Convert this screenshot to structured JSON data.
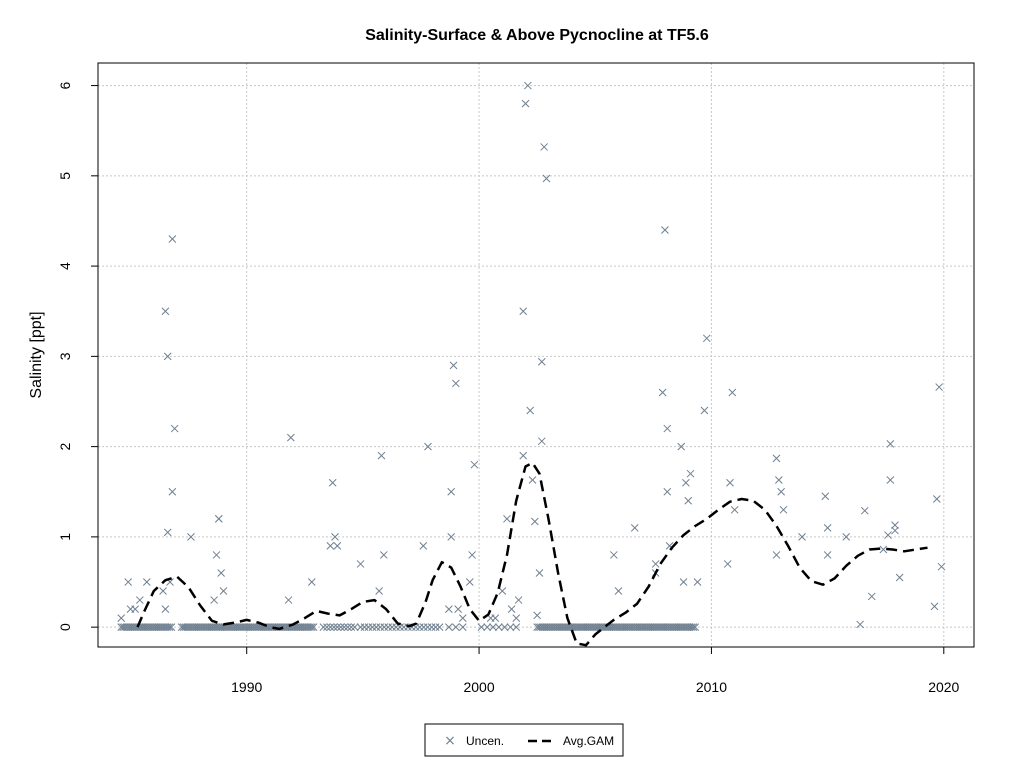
{
  "chart_data": {
    "type": "scatter",
    "title": "Salinity-Surface & Above Pycnocline at TF5.6",
    "xlabel": "",
    "ylabel": "Salinity [ppt]",
    "xlim": [
      1983.6,
      2021.3
    ],
    "ylim": [
      -0.22,
      6.25
    ],
    "x_ticks": [
      1990,
      2000,
      2010,
      2020
    ],
    "y_ticks": [
      0,
      1,
      2,
      3,
      4,
      5,
      6
    ],
    "grid": true,
    "legend_position": "bottom-center",
    "series": [
      {
        "name": "Uncen.",
        "marker": "x",
        "color": "#708090",
        "points": [
          [
            1984.6,
            0.1
          ],
          [
            1984.9,
            0.5
          ],
          [
            1985.0,
            0.2
          ],
          [
            1985.2,
            0.2
          ],
          [
            1985.4,
            0.3
          ],
          [
            1985.7,
            0.5
          ],
          [
            1986.4,
            0.4
          ],
          [
            1986.5,
            0.2
          ],
          [
            1986.5,
            3.5
          ],
          [
            1986.6,
            3.0
          ],
          [
            1986.6,
            1.05
          ],
          [
            1986.7,
            0.5
          ],
          [
            1986.8,
            1.5
          ],
          [
            1986.8,
            4.3
          ],
          [
            1986.9,
            2.2
          ],
          [
            1987.6,
            1.0
          ],
          [
            1988.8,
            1.2
          ],
          [
            1988.8,
            1.2
          ],
          [
            1988.7,
            0.8
          ],
          [
            1988.9,
            0.6
          ],
          [
            1989.0,
            0.4
          ],
          [
            1988.6,
            0.3
          ],
          [
            1991.8,
            0.3
          ],
          [
            1991.9,
            2.1
          ],
          [
            1992.8,
            0.5
          ],
          [
            1993.6,
            0.9
          ],
          [
            1993.7,
            1.6
          ],
          [
            1993.8,
            1.0
          ],
          [
            1993.9,
            0.9
          ],
          [
            1994.9,
            0.7
          ],
          [
            1995.7,
            0.4
          ],
          [
            1995.8,
            1.9
          ],
          [
            1995.9,
            0.8
          ],
          [
            1997.8,
            2.0
          ],
          [
            1997.6,
            0.9
          ],
          [
            1998.7,
            0.2
          ],
          [
            1998.8,
            1.0
          ],
          [
            1998.8,
            1.5
          ],
          [
            1998.9,
            2.9
          ],
          [
            1999.0,
            2.7
          ],
          [
            1999.1,
            0.2
          ],
          [
            1999.3,
            0.1
          ],
          [
            1999.6,
            0.5
          ],
          [
            1999.8,
            1.8
          ],
          [
            1999.7,
            0.8
          ],
          [
            2000.5,
            0.1
          ],
          [
            2000.7,
            0.1
          ],
          [
            2001.0,
            0.4
          ],
          [
            2001.2,
            1.2
          ],
          [
            2001.4,
            0.2
          ],
          [
            2001.6,
            0.1
          ],
          [
            2001.7,
            0.3
          ],
          [
            2001.9,
            1.9
          ],
          [
            2001.9,
            3.5
          ],
          [
            2002.0,
            5.8
          ],
          [
            2002.1,
            6.0
          ],
          [
            2002.2,
            2.4
          ],
          [
            2002.3,
            1.63
          ],
          [
            2002.4,
            1.17
          ],
          [
            2002.5,
            0.13
          ],
          [
            2002.6,
            0.6
          ],
          [
            2002.7,
            2.06
          ],
          [
            2002.7,
            2.94
          ],
          [
            2002.8,
            5.32
          ],
          [
            2002.9,
            4.97
          ],
          [
            2005.8,
            0.8
          ],
          [
            2006.0,
            0.4
          ],
          [
            2006.7,
            1.1
          ],
          [
            2007.6,
            0.6
          ],
          [
            2007.6,
            0.7
          ],
          [
            2007.9,
            2.6
          ],
          [
            2008.0,
            4.4
          ],
          [
            2008.1,
            1.5
          ],
          [
            2008.1,
            2.2
          ],
          [
            2008.2,
            0.9
          ],
          [
            2008.7,
            2.0
          ],
          [
            2008.8,
            0.5
          ],
          [
            2008.9,
            1.6
          ],
          [
            2009.0,
            1.4
          ],
          [
            2009.1,
            1.7
          ],
          [
            2009.4,
            0.5
          ],
          [
            2009.7,
            2.4
          ],
          [
            2009.8,
            3.2
          ],
          [
            2010.7,
            0.7
          ],
          [
            2010.8,
            1.6
          ],
          [
            2010.9,
            2.6
          ],
          [
            2011.0,
            1.3
          ],
          [
            2012.8,
            0.8
          ],
          [
            2012.8,
            1.87
          ],
          [
            2012.9,
            1.63
          ],
          [
            2013.0,
            1.5
          ],
          [
            2013.1,
            1.3
          ],
          [
            2013.9,
            1.0
          ],
          [
            2014.9,
            1.45
          ],
          [
            2015.0,
            1.1
          ],
          [
            2015.0,
            0.8
          ],
          [
            2015.8,
            1.0
          ],
          [
            2016.4,
            0.03
          ],
          [
            2016.6,
            1.29
          ],
          [
            2016.9,
            0.34
          ],
          [
            2017.4,
            0.86
          ],
          [
            2017.6,
            1.02
          ],
          [
            2017.7,
            1.63
          ],
          [
            2017.7,
            2.03
          ],
          [
            2017.9,
            1.07
          ],
          [
            2017.9,
            1.13
          ],
          [
            2018.1,
            0.55
          ],
          [
            2019.6,
            0.23
          ],
          [
            2019.7,
            1.42
          ],
          [
            2019.8,
            2.66
          ],
          [
            2019.9,
            0.67
          ]
        ],
        "zero_runs": [
          [
            1984.6,
            1986.8,
            0.08
          ],
          [
            1987.2,
            1992.9,
            0.08
          ],
          [
            1993.3,
            1994.7,
            0.15
          ],
          [
            1994.9,
            1998.3,
            0.17
          ],
          [
            1998.7,
            1999.5,
            0.3
          ],
          [
            2000.1,
            2001.6,
            0.25
          ],
          [
            2002.5,
            2009.3,
            0.08
          ]
        ]
      },
      {
        "name": "Avg.GAM",
        "style": "dashed",
        "color": "#000000",
        "points": [
          [
            1985.3,
            0.0
          ],
          [
            1985.6,
            0.18
          ],
          [
            1986.0,
            0.4
          ],
          [
            1986.5,
            0.52
          ],
          [
            1987.0,
            0.56
          ],
          [
            1987.5,
            0.44
          ],
          [
            1988.0,
            0.24
          ],
          [
            1988.5,
            0.07
          ],
          [
            1989.0,
            0.03
          ],
          [
            1989.5,
            0.05
          ],
          [
            1990.0,
            0.08
          ],
          [
            1990.5,
            0.05
          ],
          [
            1991.0,
            0.0
          ],
          [
            1991.4,
            -0.02
          ],
          [
            1992.0,
            0.03
          ],
          [
            1992.5,
            0.1
          ],
          [
            1993.0,
            0.18
          ],
          [
            1993.5,
            0.15
          ],
          [
            1994.0,
            0.13
          ],
          [
            1994.5,
            0.2
          ],
          [
            1995.0,
            0.28
          ],
          [
            1995.5,
            0.3
          ],
          [
            1996.0,
            0.2
          ],
          [
            1996.5,
            0.04
          ],
          [
            1997.0,
            0.01
          ],
          [
            1997.3,
            0.04
          ],
          [
            1997.7,
            0.28
          ],
          [
            1998.0,
            0.52
          ],
          [
            1998.4,
            0.72
          ],
          [
            1998.8,
            0.66
          ],
          [
            1999.2,
            0.45
          ],
          [
            1999.6,
            0.2
          ],
          [
            2000.0,
            0.07
          ],
          [
            2000.4,
            0.14
          ],
          [
            2000.8,
            0.38
          ],
          [
            2001.2,
            0.8
          ],
          [
            2001.6,
            1.4
          ],
          [
            2002.0,
            1.78
          ],
          [
            2002.3,
            1.82
          ],
          [
            2002.6,
            1.7
          ],
          [
            2003.0,
            1.18
          ],
          [
            2003.4,
            0.6
          ],
          [
            2003.8,
            0.1
          ],
          [
            2004.2,
            -0.18
          ],
          [
            2004.6,
            -0.2
          ],
          [
            2005.0,
            -0.08
          ],
          [
            2005.4,
            0.0
          ],
          [
            2005.8,
            0.08
          ],
          [
            2006.3,
            0.16
          ],
          [
            2006.8,
            0.26
          ],
          [
            2007.3,
            0.45
          ],
          [
            2007.8,
            0.7
          ],
          [
            2008.3,
            0.88
          ],
          [
            2008.8,
            1.02
          ],
          [
            2009.3,
            1.12
          ],
          [
            2009.8,
            1.2
          ],
          [
            2010.3,
            1.3
          ],
          [
            2010.8,
            1.39
          ],
          [
            2011.3,
            1.42
          ],
          [
            2011.8,
            1.4
          ],
          [
            2012.3,
            1.3
          ],
          [
            2012.8,
            1.12
          ],
          [
            2013.3,
            0.9
          ],
          [
            2013.8,
            0.66
          ],
          [
            2014.3,
            0.51
          ],
          [
            2014.8,
            0.47
          ],
          [
            2015.3,
            0.54
          ],
          [
            2015.8,
            0.68
          ],
          [
            2016.3,
            0.79
          ],
          [
            2016.8,
            0.86
          ],
          [
            2017.3,
            0.87
          ],
          [
            2017.8,
            0.86
          ],
          [
            2018.3,
            0.84
          ],
          [
            2018.8,
            0.86
          ],
          [
            2019.3,
            0.88
          ]
        ]
      }
    ]
  },
  "legend": {
    "items": [
      {
        "label": "Uncen."
      },
      {
        "label": "Avg.GAM"
      }
    ]
  }
}
